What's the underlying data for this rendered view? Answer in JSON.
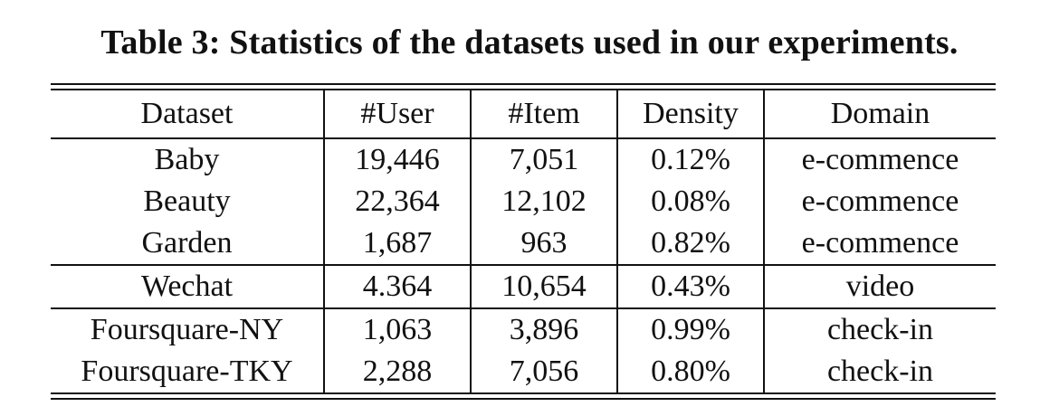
{
  "caption": "Table 3: Statistics of the datasets used in our experiments.",
  "table": {
    "headers": [
      "Dataset",
      "#User",
      "#Item",
      "Density",
      "Domain"
    ],
    "groups": [
      {
        "rows": [
          [
            "Baby",
            "19,446",
            "7,051",
            "0.12%",
            "e-commence"
          ],
          [
            "Beauty",
            "22,364",
            "12,102",
            "0.08%",
            "e-commence"
          ],
          [
            "Garden",
            "1,687",
            "963",
            "0.82%",
            "e-commence"
          ]
        ]
      },
      {
        "rows": [
          [
            "Wechat",
            "4.364",
            "10,654",
            "0.43%",
            "video"
          ]
        ]
      },
      {
        "rows": [
          [
            "Foursquare-NY",
            "1,063",
            "3,896",
            "0.99%",
            "check-in"
          ],
          [
            "Foursquare-TKY",
            "2,288",
            "7,056",
            "0.80%",
            "check-in"
          ]
        ]
      }
    ]
  }
}
